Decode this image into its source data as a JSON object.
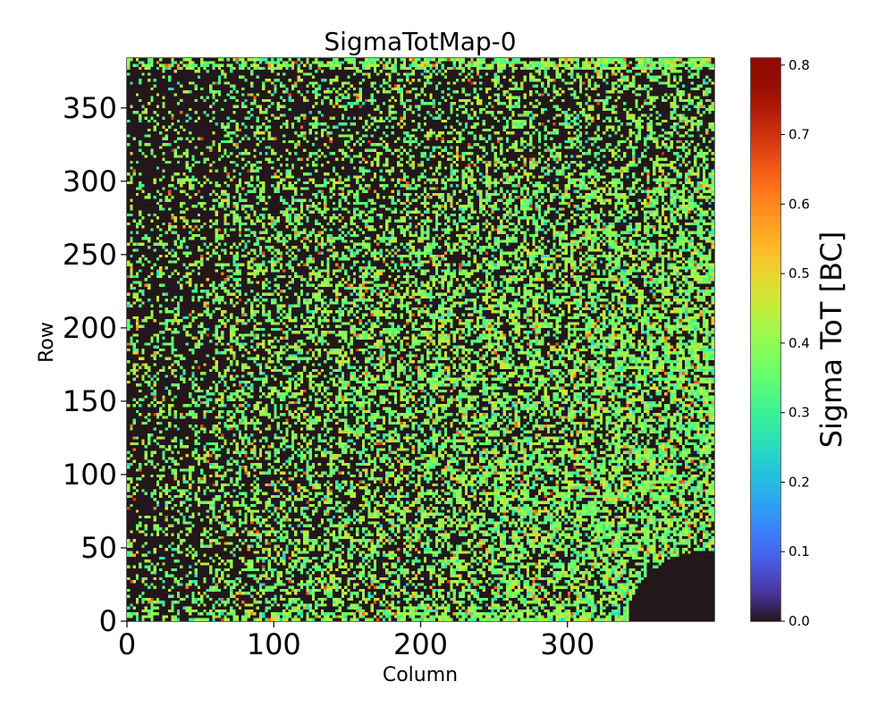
{
  "chart_data": {
    "type": "heatmap",
    "title": "SigmaTotMap-0",
    "xlabel": "Column",
    "ylabel": "Row",
    "xlim": [
      0,
      400
    ],
    "ylim": [
      0,
      384
    ],
    "xticks": [
      0,
      100,
      200,
      300
    ],
    "xtick_labels": [
      "0",
      "100",
      "200",
      "300"
    ],
    "yticks": [
      0,
      50,
      100,
      150,
      200,
      250,
      300,
      350
    ],
    "ytick_labels": [
      "0",
      "50",
      "100",
      "150",
      "200",
      "250",
      "300",
      "350"
    ],
    "colorbar": {
      "label": "Sigma ToT [BC]",
      "colormap": "turbo",
      "range": [
        0.0,
        0.81
      ],
      "ticks": [
        0.0,
        0.1,
        0.2,
        0.3,
        0.4,
        0.5,
        0.6,
        0.7,
        0.8
      ],
      "tick_labels": [
        "0.0",
        "0.1",
        "0.2",
        "0.3",
        "0.4",
        "0.5",
        "0.6",
        "0.7",
        "0.8"
      ]
    },
    "grid": false,
    "description_of_values": {
      "dominant_value": 0.0,
      "typical_nonzero_range": [
        0.25,
        0.55
      ],
      "higher_density_region": "columns 200-400, rows 0-250",
      "zero_region": "rounded patch near columns 340-400, rows 0-45"
    }
  },
  "colors": {
    "low": "#30123b",
    "high": "#7a0403"
  }
}
